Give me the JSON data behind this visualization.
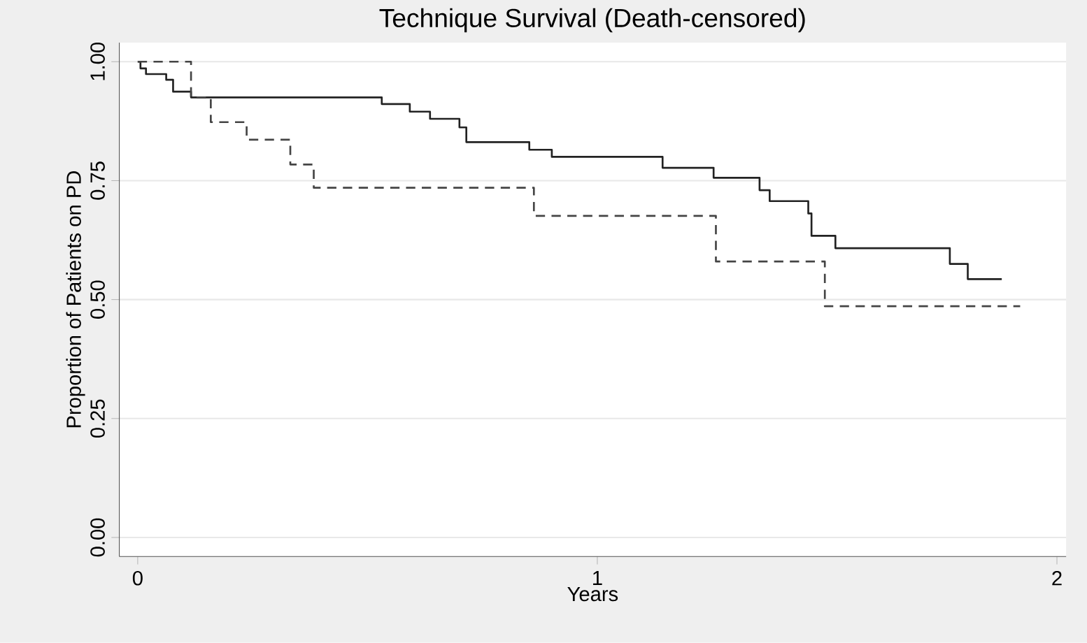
{
  "chart_data": {
    "type": "step",
    "title": "Technique Survival (Death-censored)",
    "xlabel": "Years",
    "ylabel": "Proportion of Patients on PD",
    "xlim": [
      -0.04,
      2.02
    ],
    "ylim": [
      -0.04,
      1.04
    ],
    "xticks": [
      0,
      1,
      2
    ],
    "yticks": [
      {
        "value": 0,
        "label": "0.00"
      },
      {
        "value": 0.25,
        "label": "0.25"
      },
      {
        "value": 0.5,
        "label": "0.50"
      },
      {
        "value": 0.75,
        "label": "0.75"
      },
      {
        "value": 1,
        "label": "1.00"
      }
    ],
    "grid": "y",
    "series": [
      {
        "color": "#222222",
        "line_style": "solid",
        "x": [
          0,
          0.006,
          0.018,
          0.062,
          0.077,
          0.116,
          0.531,
          0.592,
          0.636,
          0.7,
          0.715,
          0.852,
          0.901,
          1.142,
          1.253,
          1.353,
          1.375,
          1.459,
          1.466,
          1.518,
          1.767,
          1.806,
          1.88
        ],
        "values": [
          1.0,
          0.986,
          0.974,
          0.962,
          0.937,
          0.925,
          0.911,
          0.895,
          0.88,
          0.862,
          0.831,
          0.815,
          0.8,
          0.777,
          0.756,
          0.73,
          0.707,
          0.681,
          0.634,
          0.608,
          0.575,
          0.543,
          0.543
        ]
      },
      {
        "color": "#444444",
        "line_style": "dashed",
        "x": [
          0,
          0.116,
          0.159,
          0.237,
          0.332,
          0.383,
          0.862,
          1.258,
          1.495,
          1.92
        ],
        "values": [
          1.0,
          0.925,
          0.873,
          0.836,
          0.784,
          0.735,
          0.676,
          0.58,
          0.486,
          0.486
        ]
      }
    ]
  }
}
